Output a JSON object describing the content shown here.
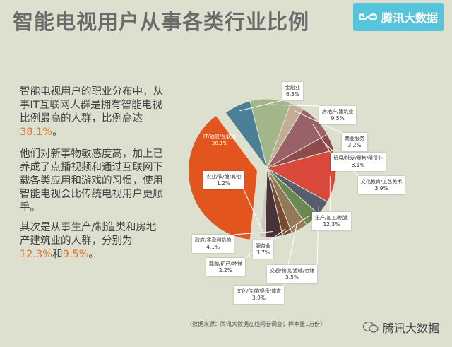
{
  "header": {
    "title": "智能电视用户从事各类行业比例",
    "brand": "腾讯大数据"
  },
  "left_text": {
    "p1_a": "智能电视用户的职业分布中，从事IT互联网人群是拥有智能电视比例最高的人群，比例高达",
    "p1_hl": "38.1%",
    "p1_b": "。",
    "p2": "他们对新事物敏感度高，加上已养成了点播视频和通过互联网下载各类应用和游戏的习惯，使用智能电视会比传统电视用户更顺手。",
    "p3_a": "其次是从事生产/制造类和房地产建筑业的人群，分别为",
    "p3_hl1": "12.3%",
    "p3_mid": "和",
    "p3_hl2": "9.5%",
    "p3_b": "。"
  },
  "chart_data": {
    "type": "pie",
    "title": "",
    "slices": [
      {
        "label": "IT/通信/互联网",
        "value": 38.1,
        "display": "38.1%",
        "color": "#e2551e"
      },
      {
        "label": "金融业",
        "value": 6.3,
        "display": "6.3%",
        "color": "#4b7f95"
      },
      {
        "label": "房地产/建筑业",
        "value": 9.5,
        "display": "9.5%",
        "color": "#a3b68a"
      },
      {
        "label": "商业服务",
        "value": 3.2,
        "display": "3.2%",
        "color": "#c4ad96"
      },
      {
        "label": "贸易/批发/零售/租赁业",
        "value": 8.1,
        "display": "8.1%",
        "color": "#9a6169"
      },
      {
        "label": "文化教育/工艺美术",
        "value": 3.9,
        "display": "3.9%",
        "color": "#8e4b4c"
      },
      {
        "label": "生产/加工/制造",
        "value": 12.3,
        "display": "12.3%",
        "color": "#d94a3d"
      },
      {
        "label": "交通/物流/运输/仓储",
        "value": 3.5,
        "display": "3.5%",
        "color": "#585d6e"
      },
      {
        "label": "服务业",
        "value": 3.7,
        "display": "3.7%",
        "color": "#6a8850"
      },
      {
        "label": "文化/传媒/娱乐/体育",
        "value": 3.9,
        "display": "3.9%",
        "color": "#927a5a"
      },
      {
        "label": "能源/矿产/环保",
        "value": 2.2,
        "display": "2.2%",
        "color": "#7a4a2e"
      },
      {
        "label": "政府/非盈利机构",
        "value": 4.1,
        "display": "4.1%",
        "color": "#4a3338"
      },
      {
        "label": "农业/牧/渔/其他",
        "value": 1.2,
        "display": "1.2%",
        "color": "#c9c9c2"
      }
    ]
  },
  "footer": {
    "source": "（数据来源：腾讯大数据在线问卷调查；样本量1万份）",
    "watermark": "腾讯大数据"
  }
}
